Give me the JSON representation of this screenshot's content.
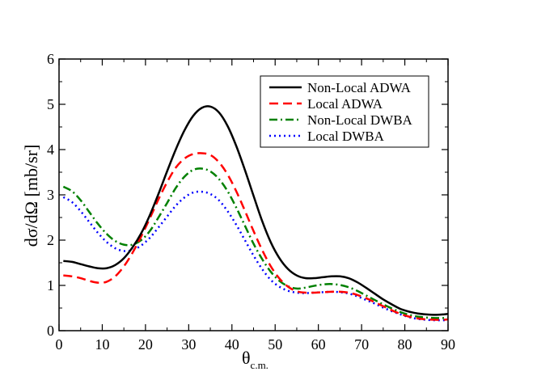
{
  "chart_data": {
    "type": "line",
    "title": "",
    "xlabel_main": "θ",
    "xlabel_sub": "c.m.",
    "ylabel": "dσ/dΩ  [mb/sr]",
    "xlim": [
      0,
      90
    ],
    "ylim": [
      0,
      6
    ],
    "xticks": [
      0,
      10,
      20,
      30,
      40,
      50,
      60,
      70,
      80,
      90
    ],
    "yticks": [
      0,
      1,
      2,
      3,
      4,
      5,
      6
    ],
    "grid": false,
    "legend_position": "top-right",
    "series": [
      {
        "name": "Non-Local ADWA",
        "color": "#000000",
        "dash": "solid",
        "x": [
          1,
          3,
          5,
          7,
          9,
          11,
          13,
          15,
          17,
          19,
          21,
          23,
          25,
          27,
          29,
          31,
          33,
          35,
          37,
          39,
          41,
          43,
          45,
          47,
          49,
          51,
          53,
          55,
          57,
          59,
          61,
          63,
          65,
          67,
          69,
          71,
          73,
          75,
          77,
          79,
          81,
          83,
          85,
          87,
          89,
          90
        ],
        "y": [
          1.54,
          1.52,
          1.47,
          1.42,
          1.38,
          1.38,
          1.45,
          1.6,
          1.84,
          2.15,
          2.55,
          3.02,
          3.52,
          4.0,
          4.42,
          4.74,
          4.92,
          4.95,
          4.82,
          4.52,
          4.08,
          3.55,
          2.98,
          2.42,
          1.95,
          1.6,
          1.36,
          1.22,
          1.16,
          1.16,
          1.18,
          1.2,
          1.2,
          1.16,
          1.07,
          0.95,
          0.82,
          0.69,
          0.58,
          0.48,
          0.42,
          0.38,
          0.36,
          0.35,
          0.36,
          0.37
        ]
      },
      {
        "name": "Local ADWA",
        "color": "#ff0000",
        "dash": "dashed",
        "x": [
          1,
          3,
          5,
          7,
          9,
          11,
          13,
          15,
          17,
          19,
          21,
          23,
          25,
          27,
          29,
          31,
          33,
          35,
          37,
          39,
          41,
          43,
          45,
          47,
          49,
          51,
          53,
          55,
          57,
          59,
          61,
          63,
          65,
          67,
          69,
          71,
          73,
          75,
          77,
          79,
          81,
          83,
          85,
          87,
          89,
          90
        ],
        "y": [
          1.22,
          1.2,
          1.16,
          1.1,
          1.06,
          1.08,
          1.2,
          1.42,
          1.72,
          2.08,
          2.48,
          2.9,
          3.28,
          3.6,
          3.8,
          3.9,
          3.92,
          3.88,
          3.72,
          3.45,
          3.08,
          2.65,
          2.2,
          1.78,
          1.42,
          1.15,
          0.97,
          0.87,
          0.84,
          0.84,
          0.85,
          0.86,
          0.86,
          0.84,
          0.79,
          0.72,
          0.63,
          0.54,
          0.45,
          0.37,
          0.31,
          0.27,
          0.25,
          0.24,
          0.24,
          0.25
        ]
      },
      {
        "name": "Non-Local DWBA",
        "color": "#008000",
        "dash": "dashdot",
        "x": [
          1,
          3,
          5,
          7,
          9,
          11,
          13,
          15,
          17,
          19,
          21,
          23,
          25,
          27,
          29,
          31,
          33,
          35,
          37,
          39,
          41,
          43,
          45,
          47,
          49,
          51,
          53,
          55,
          57,
          59,
          61,
          63,
          65,
          67,
          69,
          71,
          73,
          75,
          77,
          79,
          81,
          83,
          85,
          87,
          89,
          90
        ],
        "y": [
          3.18,
          3.08,
          2.88,
          2.62,
          2.36,
          2.14,
          1.98,
          1.9,
          1.9,
          2.0,
          2.2,
          2.5,
          2.82,
          3.15,
          3.4,
          3.55,
          3.58,
          3.52,
          3.35,
          3.08,
          2.72,
          2.32,
          1.92,
          1.58,
          1.3,
          1.1,
          0.98,
          0.93,
          0.95,
          0.99,
          1.02,
          1.03,
          1.01,
          0.96,
          0.88,
          0.78,
          0.68,
          0.58,
          0.49,
          0.41,
          0.35,
          0.31,
          0.29,
          0.28,
          0.28,
          0.29
        ]
      },
      {
        "name": "Local DWBA",
        "color": "#0000ff",
        "dash": "dotted",
        "x": [
          1,
          3,
          5,
          7,
          9,
          11,
          13,
          15,
          17,
          19,
          21,
          23,
          25,
          27,
          29,
          31,
          33,
          35,
          37,
          39,
          41,
          43,
          45,
          47,
          49,
          51,
          53,
          55,
          57,
          59,
          61,
          63,
          65,
          67,
          69,
          71,
          73,
          75,
          77,
          79,
          81,
          83,
          85,
          87,
          89,
          90
        ],
        "y": [
          2.95,
          2.84,
          2.64,
          2.4,
          2.16,
          1.96,
          1.82,
          1.76,
          1.78,
          1.88,
          2.05,
          2.28,
          2.52,
          2.76,
          2.94,
          3.05,
          3.07,
          3.02,
          2.88,
          2.64,
          2.34,
          2.0,
          1.66,
          1.36,
          1.12,
          0.97,
          0.88,
          0.84,
          0.83,
          0.84,
          0.85,
          0.86,
          0.85,
          0.82,
          0.76,
          0.68,
          0.6,
          0.51,
          0.43,
          0.36,
          0.3,
          0.26,
          0.24,
          0.23,
          0.23,
          0.24
        ]
      }
    ]
  }
}
